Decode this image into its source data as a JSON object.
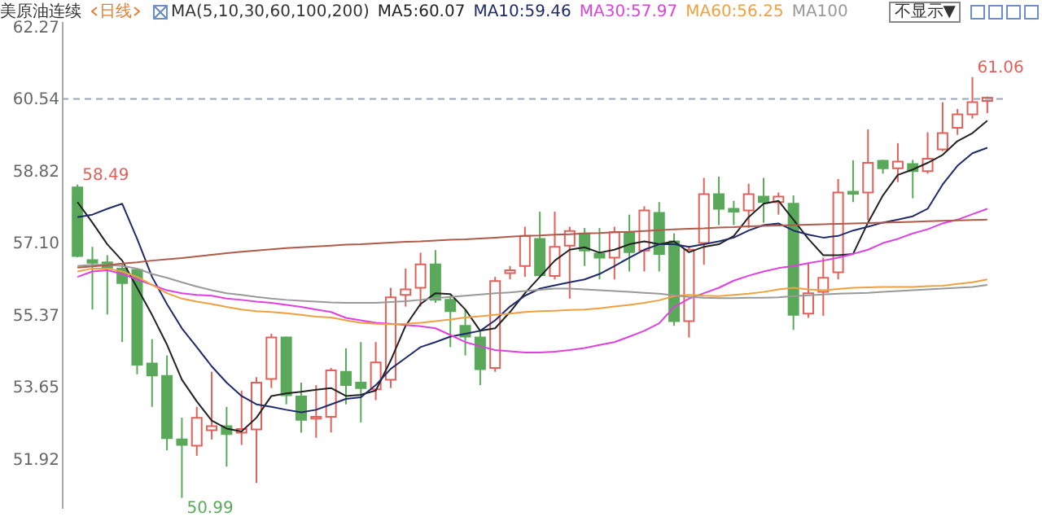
{
  "chart_data": {
    "type": "candlestick",
    "title": "美原油连续",
    "subtitle": "日线",
    "legend_title": "MA(5,10,30,60,100,200)",
    "legend": "top",
    "tick_labels": "y",
    "categories": [
      null,
      null,
      null,
      null,
      null,
      null,
      null,
      null,
      null,
      null,
      null,
      null,
      null,
      null,
      null,
      null,
      null,
      null,
      null,
      null,
      null,
      null,
      null,
      null,
      null,
      null,
      null,
      null,
      null,
      null,
      null,
      null,
      null,
      null,
      null,
      null,
      null,
      null,
      null,
      null,
      null,
      null,
      null,
      null,
      null,
      null,
      null,
      null,
      null,
      null,
      null,
      null,
      null,
      null,
      null,
      null,
      null,
      null,
      null,
      null,
      null,
      null
    ],
    "ohlc": [
      [
        58.42,
        58.49,
        56.75,
        56.78
      ],
      [
        56.68,
        57.0,
        55.5,
        56.62
      ],
      [
        56.63,
        56.8,
        55.38,
        56.5
      ],
      [
        56.48,
        56.61,
        54.72,
        56.13
      ],
      [
        56.45,
        56.48,
        53.95,
        54.18
      ],
      [
        54.21,
        54.79,
        53.17,
        53.92
      ],
      [
        53.91,
        54.4,
        52.13,
        52.42
      ],
      [
        52.39,
        52.91,
        50.99,
        52.26
      ],
      [
        52.24,
        53.17,
        52.0,
        52.91
      ],
      [
        52.61,
        54.01,
        52.39,
        52.71
      ],
      [
        52.71,
        53.17,
        51.74,
        52.52
      ],
      [
        52.55,
        53.56,
        52.26,
        52.64
      ],
      [
        52.63,
        53.88,
        51.35,
        53.75
      ],
      [
        53.84,
        54.92,
        53.62,
        54.83
      ],
      [
        54.83,
        54.85,
        53.23,
        53.45
      ],
      [
        53.42,
        53.75,
        52.55,
        52.86
      ],
      [
        52.89,
        53.69,
        52.43,
        52.93
      ],
      [
        52.93,
        54.1,
        52.56,
        54.04
      ],
      [
        54.01,
        54.57,
        53.23,
        53.69
      ],
      [
        53.75,
        54.72,
        52.8,
        53.62
      ],
      [
        53.59,
        54.72,
        53.33,
        54.23
      ],
      [
        53.82,
        56.02,
        53.62,
        55.79
      ],
      [
        55.85,
        56.48,
        55.57,
        55.98
      ],
      [
        56.02,
        56.86,
        55.57,
        56.58
      ],
      [
        56.58,
        56.92,
        55.66,
        55.73
      ],
      [
        55.73,
        55.83,
        54.6,
        55.46
      ],
      [
        55.11,
        55.5,
        54.4,
        54.85
      ],
      [
        54.83,
        54.98,
        53.69,
        54.07
      ],
      [
        54.1,
        56.28,
        54.01,
        56.18
      ],
      [
        56.37,
        56.54,
        56.22,
        56.44
      ],
      [
        56.54,
        57.48,
        56.28,
        57.26
      ],
      [
        57.19,
        57.84,
        56.28,
        56.32
      ],
      [
        56.3,
        57.84,
        56.22,
        57.0
      ],
      [
        57.03,
        57.48,
        55.76,
        57.38
      ],
      [
        57.32,
        57.45,
        56.54,
        56.91
      ],
      [
        56.84,
        57.45,
        56.22,
        56.74
      ],
      [
        56.74,
        57.48,
        56.22,
        57.35
      ],
      [
        57.35,
        57.77,
        56.41,
        56.87
      ],
      [
        56.91,
        57.97,
        56.41,
        57.87
      ],
      [
        57.81,
        58.07,
        56.41,
        56.83
      ],
      [
        57.13,
        57.32,
        55.11,
        55.22
      ],
      [
        55.22,
        57.0,
        54.83,
        56.93
      ],
      [
        57.09,
        58.65,
        56.57,
        58.26
      ],
      [
        58.26,
        58.68,
        57.52,
        57.91
      ],
      [
        57.91,
        58.1,
        57.52,
        57.84
      ],
      [
        57.87,
        58.51,
        57.45,
        58.26
      ],
      [
        58.2,
        58.65,
        57.58,
        58.07
      ],
      [
        58.07,
        58.3,
        57.77,
        58.2
      ],
      [
        58.03,
        58.23,
        55.01,
        55.37
      ],
      [
        55.4,
        56.61,
        55.3,
        55.89
      ],
      [
        55.92,
        56.74,
        55.35,
        56.26
      ],
      [
        56.39,
        58.62,
        56.22,
        58.3
      ],
      [
        58.32,
        59.07,
        58.07,
        58.27
      ],
      [
        58.3,
        59.81,
        57.64,
        59.01
      ],
      [
        59.06,
        59.08,
        58.75,
        58.88
      ],
      [
        58.88,
        59.48,
        58.55,
        59.04
      ],
      [
        58.98,
        59.08,
        58.16,
        58.81
      ],
      [
        58.81,
        59.74,
        58.75,
        59.11
      ],
      [
        59.33,
        60.46,
        59.29,
        59.72
      ],
      [
        59.85,
        60.3,
        59.68,
        60.17
      ],
      [
        60.17,
        61.06,
        60.07,
        60.46
      ],
      [
        60.49,
        60.6,
        60.2,
        60.57
      ]
    ],
    "colors": [
      "#5aa95a",
      "#5aa95a",
      "#5aa95a",
      "#5aa95a",
      "#5aa95a",
      "#5aa95a",
      "#5aa95a",
      "#5aa95a",
      "#e0605a",
      "#e0605a",
      "#5aa95a",
      "#e0605a",
      "#e0605a",
      "#e0605a",
      "#5aa95a",
      "#5aa95a",
      "#e0605a",
      "#e0605a",
      "#5aa95a",
      "#5aa95a",
      "#e0605a",
      "#e0605a",
      "#e0605a",
      "#e0605a",
      "#5aa95a",
      "#5aa95a",
      "#5aa95a",
      "#5aa95a",
      "#e0605a",
      "#e0605a",
      "#e0605a",
      "#5aa95a",
      "#e0605a",
      "#e0605a",
      "#5aa95a",
      "#5aa95a",
      "#e0605a",
      "#5aa95a",
      "#e0605a",
      "#5aa95a",
      "#5aa95a",
      "#e0605a",
      "#e0605a",
      "#5aa95a",
      "#5aa95a",
      "#e0605a",
      "#5aa95a",
      "#e0605a",
      "#5aa95a",
      "#e0605a",
      "#e0605a",
      "#e0605a",
      "#5aa95a",
      "#e0605a",
      "#5aa95a",
      "#e0605a",
      "#5aa95a",
      "#e0605a",
      "#e0605a",
      "#e0605a",
      "#e0605a",
      "#e0605a"
    ],
    "series": [
      {
        "type": "line",
        "name": "MA5:60.07",
        "color": "#222222",
        "values": [
          58.07,
          57.58,
          57.06,
          56.67,
          56.02,
          55.37,
          54.66,
          53.82,
          53.3,
          52.84,
          52.65,
          52.58,
          52.91,
          53.43,
          53.49,
          53.53,
          53.58,
          53.62,
          53.43,
          53.46,
          53.56,
          54.28,
          55.11,
          55.63,
          55.89,
          55.87,
          55.5,
          54.99,
          55.05,
          55.44,
          55.89,
          56.28,
          56.67,
          56.93,
          56.99,
          56.86,
          56.93,
          57.06,
          57.13,
          57.06,
          57.13,
          56.87,
          57.0,
          57.06,
          57.26,
          57.71,
          58.03,
          58.1,
          57.65,
          57.19,
          56.8,
          56.8,
          56.83,
          57.58,
          58.23,
          58.72,
          58.85,
          59.01,
          59.2,
          59.53,
          59.72,
          60.02
        ]
      },
      {
        "type": "line",
        "name": "MA10:59.46",
        "color": "#1f2a6b",
        "values": [
          57.71,
          57.77,
          57.91,
          58.03,
          57.19,
          56.28,
          55.63,
          55.05,
          54.6,
          54.14,
          53.75,
          53.43,
          53.23,
          53.17,
          53.1,
          53.04,
          53.1,
          53.23,
          53.36,
          53.4,
          53.69,
          54.08,
          54.34,
          54.6,
          54.72,
          54.85,
          54.92,
          54.99,
          55.24,
          55.57,
          55.83,
          56.0,
          56.08,
          56.15,
          56.22,
          56.35,
          56.54,
          56.74,
          56.93,
          57.06,
          57.06,
          57.0,
          57.06,
          57.13,
          57.22,
          57.39,
          57.52,
          57.56,
          57.39,
          57.29,
          57.22,
          57.26,
          57.39,
          57.48,
          57.58,
          57.65,
          57.73,
          57.91,
          58.49,
          58.94,
          59.24,
          59.37
        ]
      },
      {
        "type": "line",
        "name": "MA30:57.97",
        "color": "#e040e0",
        "values": [
          56.28,
          56.41,
          56.44,
          56.35,
          56.22,
          56.09,
          55.96,
          55.89,
          55.85,
          55.83,
          55.76,
          55.73,
          55.69,
          55.66,
          55.61,
          55.56,
          55.5,
          55.44,
          55.3,
          55.24,
          55.18,
          55.16,
          55.13,
          55.1,
          55.05,
          54.89,
          54.72,
          54.62,
          54.53,
          54.5,
          54.47,
          54.47,
          54.49,
          54.53,
          54.58,
          54.65,
          54.72,
          54.85,
          54.99,
          55.17,
          55.56,
          55.76,
          55.89,
          56.02,
          56.19,
          56.31,
          56.41,
          56.49,
          56.54,
          56.61,
          56.67,
          56.74,
          56.83,
          56.93,
          57.09,
          57.19,
          57.32,
          57.42,
          57.56,
          57.65,
          57.78,
          57.91
        ]
      },
      {
        "type": "line",
        "name": "MA60:56.25",
        "color": "#f0a040",
        "values": [
          56.41,
          56.48,
          56.48,
          56.41,
          56.28,
          56.09,
          55.89,
          55.76,
          55.69,
          55.63,
          55.56,
          55.5,
          55.46,
          55.44,
          55.41,
          55.37,
          55.33,
          55.31,
          55.24,
          55.18,
          55.16,
          55.15,
          55.16,
          55.18,
          55.22,
          55.26,
          55.31,
          55.34,
          55.37,
          55.4,
          55.44,
          55.46,
          55.47,
          55.49,
          55.5,
          55.53,
          55.57,
          55.61,
          55.66,
          55.72,
          55.82,
          55.85,
          55.83,
          55.82,
          55.85,
          55.88,
          55.92,
          55.98,
          56.02,
          55.98,
          55.96,
          55.99,
          56.02,
          56.03,
          56.04,
          56.04,
          56.04,
          56.06,
          56.07,
          56.11,
          56.15,
          56.22
        ]
      },
      {
        "type": "line",
        "name": "MA100",
        "color": "#999999",
        "values": [
          56.54,
          56.57,
          56.57,
          56.54,
          56.48,
          56.35,
          56.26,
          56.15,
          56.05,
          55.96,
          55.89,
          55.85,
          55.8,
          55.76,
          55.73,
          55.71,
          55.69,
          55.67,
          55.66,
          55.66,
          55.66,
          55.68,
          55.7,
          55.73,
          55.77,
          55.8,
          55.83,
          55.86,
          55.89,
          55.91,
          55.94,
          55.97,
          56.0,
          56.0,
          55.98,
          55.96,
          55.94,
          55.92,
          55.9,
          55.88,
          55.84,
          55.8,
          55.78,
          55.77,
          55.77,
          55.78,
          55.78,
          55.79,
          55.82,
          55.84,
          55.86,
          55.88,
          55.89,
          55.9,
          55.92,
          55.94,
          55.96,
          55.98,
          56.0,
          56.02,
          56.04,
          56.09
        ]
      },
      {
        "type": "line",
        "color": "#b05a4a",
        "values": [
          56.5,
          56.53,
          56.56,
          56.6,
          56.63,
          56.67,
          56.7,
          56.73,
          56.77,
          56.81,
          56.85,
          56.88,
          56.91,
          56.94,
          56.97,
          56.99,
          57.01,
          57.03,
          57.05,
          57.06,
          57.08,
          57.1,
          57.12,
          57.13,
          57.15,
          57.17,
          57.18,
          57.2,
          57.22,
          57.24,
          57.26,
          57.27,
          57.29,
          57.3,
          57.32,
          57.33,
          57.35,
          57.36,
          57.38,
          57.4,
          57.42,
          57.43,
          57.44,
          57.46,
          57.47,
          57.49,
          57.5,
          57.51,
          57.52,
          57.53,
          57.54,
          57.55,
          57.56,
          57.57,
          57.58,
          57.59,
          57.6,
          57.61,
          57.62,
          57.63,
          57.64,
          57.65
        ]
      }
    ],
    "ylim": [
      50.75,
      62.4
    ],
    "yticks": [
      {
        "value": 51.92,
        "label": "51.92"
      },
      {
        "value": 53.65,
        "label": "53.65"
      },
      {
        "value": 55.37,
        "label": "55.37"
      },
      {
        "value": 57.1,
        "label": "57.10"
      },
      {
        "value": 58.82,
        "label": "58.82"
      },
      {
        "value": 60.54,
        "label": "60.54"
      },
      {
        "value": 62.27,
        "label": "62.27"
      }
    ],
    "ref_lines": [
      {
        "axis": "y",
        "value": 60.54,
        "color": "#9aa6b8",
        "line_style": "dashed"
      }
    ],
    "annotations": [
      "不显示▼",
      "58.49",
      "50.99",
      "61.06"
    ]
  }
}
